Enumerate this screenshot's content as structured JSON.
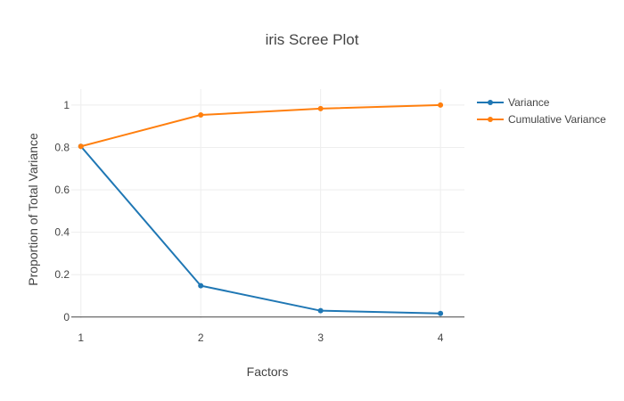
{
  "chart_data": {
    "type": "line",
    "title": "iris Scree Plot",
    "xlabel": "Factors",
    "ylabel": "Proportion of Total Variance",
    "x": [
      1,
      2,
      3,
      4
    ],
    "x_ticks": [
      "1",
      "2",
      "3",
      "4"
    ],
    "y_ticks": [
      "0",
      "0.2",
      "0.4",
      "0.6",
      "0.8",
      "1"
    ],
    "xlim": [
      0.92,
      4.2
    ],
    "ylim": [
      -0.005,
      1.075
    ],
    "grid": true,
    "legend_position": "top-right",
    "series": [
      {
        "name": "Variance",
        "color": "#1f77b4",
        "values": [
          0.805,
          0.148,
          0.03,
          0.017
        ]
      },
      {
        "name": "Cumulative Variance",
        "color": "#ff7f0e",
        "values": [
          0.805,
          0.953,
          0.983,
          1.0
        ]
      }
    ]
  }
}
